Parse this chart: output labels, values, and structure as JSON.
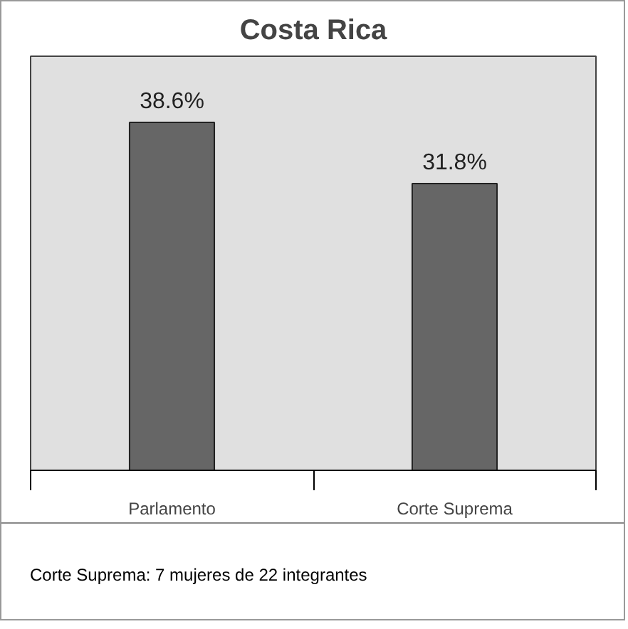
{
  "chart_data": {
    "type": "bar",
    "title": "Costa Rica",
    "categories": [
      "Parlamento",
      "Corte Suprema"
    ],
    "values": [
      38.6,
      31.8
    ],
    "color": "#666666",
    "value_labels": [
      "38.6%",
      "31.8%"
    ],
    "annotations": [
      "Corte Suprema: 7 mujeres de 22 integrantes"
    ]
  }
}
